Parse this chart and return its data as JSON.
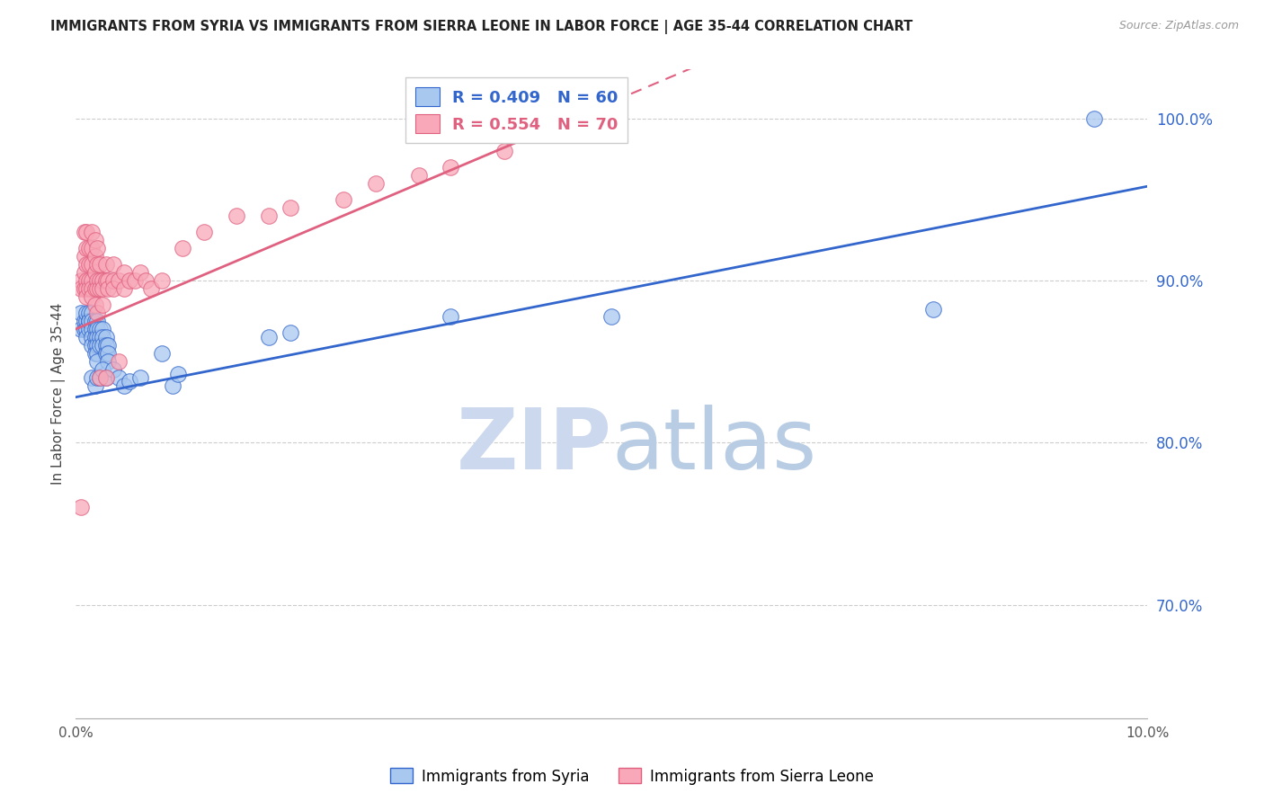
{
  "title": "IMMIGRANTS FROM SYRIA VS IMMIGRANTS FROM SIERRA LEONE IN LABOR FORCE | AGE 35-44 CORRELATION CHART",
  "source": "Source: ZipAtlas.com",
  "ylabel": "In Labor Force | Age 35-44",
  "ylabel_right_ticks": [
    0.7,
    0.8,
    0.9,
    1.0
  ],
  "ylabel_right_labels": [
    "70.0%",
    "80.0%",
    "90.0%",
    "100.0%"
  ],
  "xmin": 0.0,
  "xmax": 0.1,
  "ymin": 0.63,
  "ymax": 1.03,
  "color_syria": "#a8c8f0",
  "color_sierra": "#f8a8b8",
  "color_trendline_syria": "#3366cc",
  "color_trendline_sierra": "#e06080",
  "color_right_axis": "#3366cc",
  "color_watermark_zip": "#c8d8f0",
  "color_watermark_atlas": "#b0c8e8",
  "syria_x": [
    0.0005,
    0.0005,
    0.0008,
    0.0008,
    0.001,
    0.001,
    0.001,
    0.001,
    0.0012,
    0.0012,
    0.0012,
    0.0012,
    0.0015,
    0.0015,
    0.0015,
    0.0015,
    0.0015,
    0.0018,
    0.0018,
    0.0018,
    0.0018,
    0.0018,
    0.002,
    0.002,
    0.002,
    0.002,
    0.002,
    0.002,
    0.0022,
    0.0022,
    0.0022,
    0.0025,
    0.0025,
    0.0025,
    0.0028,
    0.0028,
    0.0028,
    0.003,
    0.003,
    0.003,
    0.0015,
    0.0018,
    0.002,
    0.0022,
    0.0025,
    0.0028,
    0.0035,
    0.004,
    0.0045,
    0.005,
    0.006,
    0.008,
    0.009,
    0.0095,
    0.018,
    0.02,
    0.035,
    0.05,
    0.08,
    0.095
  ],
  "syria_y": [
    0.87,
    0.88,
    0.87,
    0.875,
    0.875,
    0.88,
    0.87,
    0.865,
    0.875,
    0.87,
    0.88,
    0.875,
    0.88,
    0.875,
    0.87,
    0.865,
    0.86,
    0.875,
    0.87,
    0.865,
    0.86,
    0.855,
    0.875,
    0.87,
    0.865,
    0.86,
    0.855,
    0.85,
    0.87,
    0.865,
    0.86,
    0.87,
    0.865,
    0.86,
    0.865,
    0.86,
    0.855,
    0.86,
    0.855,
    0.85,
    0.84,
    0.835,
    0.84,
    0.84,
    0.845,
    0.84,
    0.845,
    0.84,
    0.835,
    0.838,
    0.84,
    0.855,
    0.835,
    0.842,
    0.865,
    0.868,
    0.878,
    0.878,
    0.882,
    1.0
  ],
  "sierra_x": [
    0.0005,
    0.0005,
    0.0005,
    0.0008,
    0.0008,
    0.0008,
    0.0008,
    0.001,
    0.001,
    0.001,
    0.001,
    0.001,
    0.001,
    0.0012,
    0.0012,
    0.0012,
    0.0012,
    0.0015,
    0.0015,
    0.0015,
    0.0015,
    0.0015,
    0.0015,
    0.0018,
    0.0018,
    0.0018,
    0.0018,
    0.0018,
    0.002,
    0.002,
    0.002,
    0.002,
    0.002,
    0.0022,
    0.0022,
    0.0022,
    0.0022,
    0.0025,
    0.0025,
    0.0025,
    0.0028,
    0.0028,
    0.0028,
    0.003,
    0.003,
    0.0035,
    0.0035,
    0.0035,
    0.004,
    0.004,
    0.0045,
    0.0045,
    0.005,
    0.0055,
    0.006,
    0.0065,
    0.007,
    0.008,
    0.01,
    0.012,
    0.015,
    0.018,
    0.02,
    0.025,
    0.028,
    0.032,
    0.035,
    0.04,
    0.045,
    0.05
  ],
  "sierra_y": [
    0.9,
    0.895,
    0.76,
    0.93,
    0.915,
    0.905,
    0.895,
    0.93,
    0.92,
    0.91,
    0.9,
    0.895,
    0.89,
    0.92,
    0.91,
    0.9,
    0.895,
    0.93,
    0.92,
    0.91,
    0.9,
    0.895,
    0.89,
    0.925,
    0.915,
    0.905,
    0.895,
    0.885,
    0.92,
    0.91,
    0.9,
    0.895,
    0.88,
    0.91,
    0.9,
    0.895,
    0.84,
    0.9,
    0.895,
    0.885,
    0.91,
    0.9,
    0.84,
    0.9,
    0.895,
    0.91,
    0.9,
    0.895,
    0.9,
    0.85,
    0.905,
    0.895,
    0.9,
    0.9,
    0.905,
    0.9,
    0.895,
    0.9,
    0.92,
    0.93,
    0.94,
    0.94,
    0.945,
    0.95,
    0.96,
    0.965,
    0.97,
    0.98,
    1.0,
    1.0
  ]
}
